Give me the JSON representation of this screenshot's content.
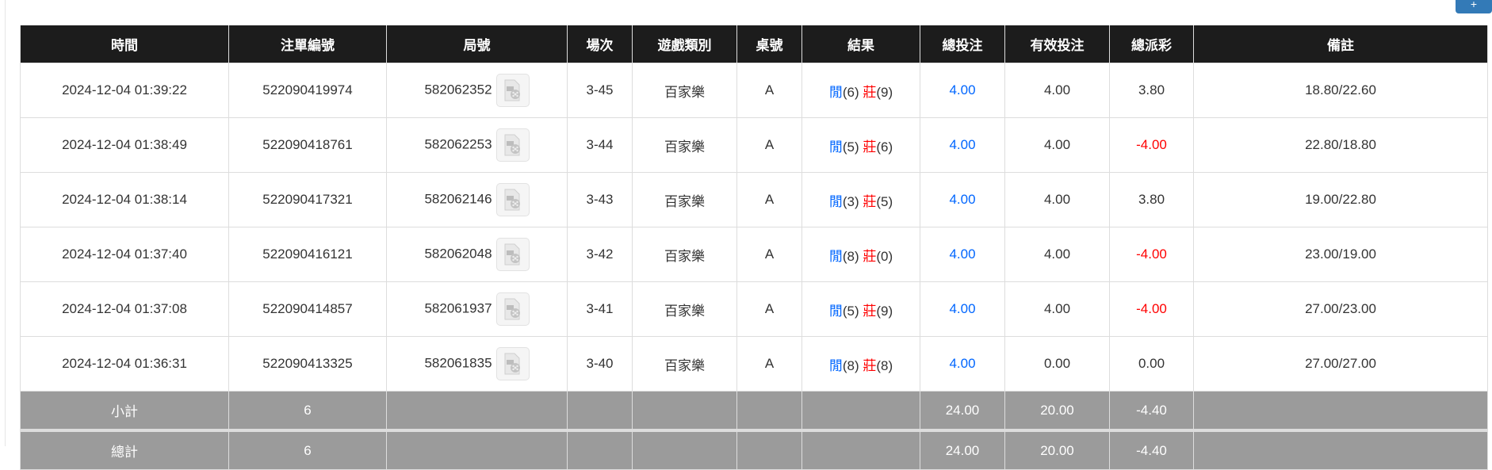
{
  "top_button": {
    "label": "+",
    "color": "#337ab7"
  },
  "headers": [
    "時間",
    "注單編號",
    "局號",
    "場次",
    "遊戲類別",
    "桌號",
    "結果",
    "總投注",
    "有效投注",
    "總派彩",
    "備註"
  ],
  "rows": [
    {
      "time": "2024-12-04 01:39:22",
      "bet_id": "522090419974",
      "round": "582062352",
      "session": "3-45",
      "game": "百家樂",
      "table": "A",
      "player_label": "閒",
      "player": "(6)",
      "banker_label": "莊",
      "banker": "(9)",
      "total_bet": "4.00",
      "valid_bet": "4.00",
      "payout": "3.80",
      "payout_negative": false,
      "note": "18.80/22.60"
    },
    {
      "time": "2024-12-04 01:38:49",
      "bet_id": "522090418761",
      "round": "582062253",
      "session": "3-44",
      "game": "百家樂",
      "table": "A",
      "player_label": "閒",
      "player": "(5)",
      "banker_label": "莊",
      "banker": "(6)",
      "total_bet": "4.00",
      "valid_bet": "4.00",
      "payout": "-4.00",
      "payout_negative": true,
      "note": "22.80/18.80"
    },
    {
      "time": "2024-12-04 01:38:14",
      "bet_id": "522090417321",
      "round": "582062146",
      "session": "3-43",
      "game": "百家樂",
      "table": "A",
      "player_label": "閒",
      "player": "(3)",
      "banker_label": "莊",
      "banker": "(5)",
      "total_bet": "4.00",
      "valid_bet": "4.00",
      "payout": "3.80",
      "payout_negative": false,
      "note": "19.00/22.80"
    },
    {
      "time": "2024-12-04 01:37:40",
      "bet_id": "522090416121",
      "round": "582062048",
      "session": "3-42",
      "game": "百家樂",
      "table": "A",
      "player_label": "閒",
      "player": "(8)",
      "banker_label": "莊",
      "banker": "(0)",
      "total_bet": "4.00",
      "valid_bet": "4.00",
      "payout": "-4.00",
      "payout_negative": true,
      "note": "23.00/19.00"
    },
    {
      "time": "2024-12-04 01:37:08",
      "bet_id": "522090414857",
      "round": "582061937",
      "session": "3-41",
      "game": "百家樂",
      "table": "A",
      "player_label": "閒",
      "player": "(5)",
      "banker_label": "莊",
      "banker": "(9)",
      "total_bet": "4.00",
      "valid_bet": "4.00",
      "payout": "-4.00",
      "payout_negative": true,
      "note": "27.00/23.00"
    },
    {
      "time": "2024-12-04 01:36:31",
      "bet_id": "522090413325",
      "round": "582061835",
      "session": "3-40",
      "game": "百家樂",
      "table": "A",
      "player_label": "閒",
      "player": "(8)",
      "banker_label": "莊",
      "banker": "(8)",
      "total_bet": "4.00",
      "valid_bet": "0.00",
      "payout": "0.00",
      "payout_negative": false,
      "note": "27.00/27.00"
    }
  ],
  "subtotal": {
    "label": "小計",
    "count": "6",
    "total_bet": "24.00",
    "valid_bet": "20.00",
    "payout": "-4.40"
  },
  "total": {
    "label": "總計",
    "count": "6",
    "total_bet": "24.00",
    "valid_bet": "20.00",
    "payout": "-4.40"
  },
  "colors": {
    "header_bg": "#1c1c1c",
    "summary_bg": "#9b9b9b",
    "player": "#0066ff",
    "banker": "#ff0000",
    "negative": "#ff0000"
  }
}
